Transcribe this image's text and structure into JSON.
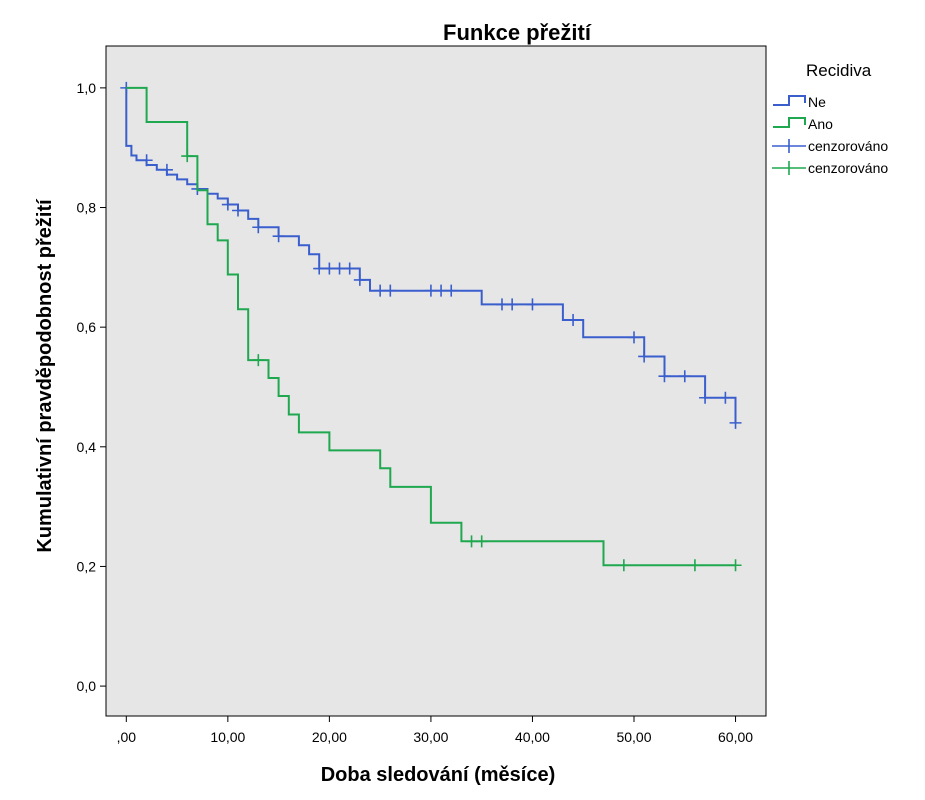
{
  "chart_data": {
    "type": "line",
    "step": true,
    "title": "Funkce přežití",
    "xlabel": "Doba sledování (měsíce)",
    "ylabel": "Kumulativní pravděpodobnost přežití",
    "xlim": [
      -2,
      63
    ],
    "ylim": [
      -0.05,
      1.07
    ],
    "x_ticks": [
      0,
      10,
      20,
      30,
      40,
      50,
      60
    ],
    "x_tick_labels": [
      ",00",
      "10,00",
      "20,00",
      "30,00",
      "40,00",
      "50,00",
      "60,00"
    ],
    "y_ticks": [
      0,
      0.2,
      0.4,
      0.6,
      0.8,
      1.0
    ],
    "y_tick_labels": [
      "0,0",
      "0,2",
      "0,4",
      "0,6",
      "0,8",
      "1,0"
    ],
    "grid": false,
    "plot_background": "#e6e6e6",
    "legend": {
      "title": "Recidiva",
      "placement": "right",
      "entries": [
        {
          "label": "Ne",
          "kind": "step-line",
          "color": "#3a5fcd"
        },
        {
          "label": "Ano",
          "kind": "step-line",
          "color": "#1fa84f"
        },
        {
          "label": "cenzorováno",
          "kind": "censor-mark",
          "color": "#3a5fcd"
        },
        {
          "label": "cenzorováno",
          "kind": "censor-mark",
          "color": "#1fa84f"
        }
      ]
    },
    "series": [
      {
        "name": "Ne",
        "color": "#3a5fcd",
        "x": [
          0,
          0,
          0.5,
          1,
          2,
          3,
          4,
          5,
          6,
          7,
          8,
          9,
          10,
          11,
          12,
          13,
          15,
          17,
          18,
          19,
          23,
          24,
          35,
          43,
          45,
          51,
          53,
          57,
          60
        ],
        "y": [
          1.0,
          0.903,
          0.887,
          0.879,
          0.871,
          0.863,
          0.855,
          0.847,
          0.839,
          0.831,
          0.823,
          0.815,
          0.805,
          0.795,
          0.781,
          0.767,
          0.752,
          0.737,
          0.722,
          0.698,
          0.679,
          0.661,
          0.638,
          0.612,
          0.583,
          0.551,
          0.518,
          0.482,
          0.44
        ],
        "censored": [
          {
            "x": 0,
            "y": 1.0
          },
          {
            "x": 2,
            "y": 0.879
          },
          {
            "x": 4,
            "y": 0.863
          },
          {
            "x": 7,
            "y": 0.831
          },
          {
            "x": 10,
            "y": 0.805
          },
          {
            "x": 11,
            "y": 0.795
          },
          {
            "x": 13,
            "y": 0.767
          },
          {
            "x": 15,
            "y": 0.752
          },
          {
            "x": 19,
            "y": 0.698
          },
          {
            "x": 20,
            "y": 0.698
          },
          {
            "x": 21,
            "y": 0.698
          },
          {
            "x": 22,
            "y": 0.698
          },
          {
            "x": 23,
            "y": 0.679
          },
          {
            "x": 25,
            "y": 0.661
          },
          {
            "x": 26,
            "y": 0.661
          },
          {
            "x": 30,
            "y": 0.661
          },
          {
            "x": 31,
            "y": 0.661
          },
          {
            "x": 32,
            "y": 0.661
          },
          {
            "x": 37,
            "y": 0.638
          },
          {
            "x": 38,
            "y": 0.638
          },
          {
            "x": 40,
            "y": 0.638
          },
          {
            "x": 44,
            "y": 0.612
          },
          {
            "x": 50,
            "y": 0.583
          },
          {
            "x": 51,
            "y": 0.551
          },
          {
            "x": 53,
            "y": 0.518
          },
          {
            "x": 55,
            "y": 0.518
          },
          {
            "x": 57,
            "y": 0.482
          },
          {
            "x": 59,
            "y": 0.482
          },
          {
            "x": 60,
            "y": 0.44
          }
        ]
      },
      {
        "name": "Ano",
        "color": "#1fa84f",
        "x": [
          0,
          2,
          6,
          7,
          8,
          9,
          10,
          11,
          12,
          14,
          15,
          16,
          17,
          20,
          25,
          26,
          30,
          33,
          47,
          60
        ],
        "y": [
          1.0,
          0.943,
          0.886,
          0.829,
          0.772,
          0.745,
          0.688,
          0.63,
          0.545,
          0.515,
          0.485,
          0.454,
          0.424,
          0.394,
          0.364,
          0.333,
          0.273,
          0.242,
          0.202,
          0.202
        ],
        "censored": [
          {
            "x": 6,
            "y": 0.886
          },
          {
            "x": 13,
            "y": 0.545
          },
          {
            "x": 34,
            "y": 0.242
          },
          {
            "x": 35,
            "y": 0.242
          },
          {
            "x": 49,
            "y": 0.202
          },
          {
            "x": 56,
            "y": 0.202
          },
          {
            "x": 60,
            "y": 0.202
          }
        ]
      }
    ]
  }
}
